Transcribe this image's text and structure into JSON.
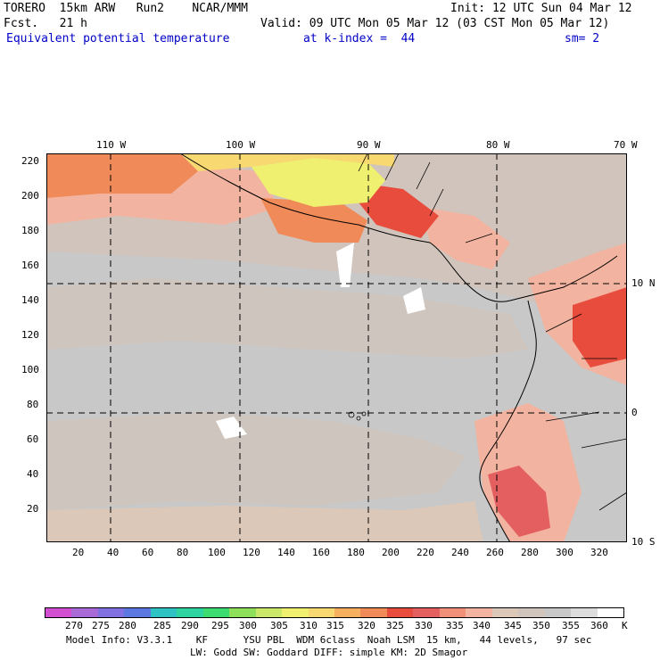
{
  "header": {
    "line1_left": "TORERO  15km ARW   Run2    NCAR/MMM",
    "line1_right": "Init: 12 UTC Sun 04 Mar 12",
    "line2_left": "Fcst.   21 h",
    "line2_right": "Valid: 09 UTC Mon 05 Mar 12 (03 CST Mon 05 Mar 12)",
    "line3_field": "Equivalent potential temperature",
    "line3_level": "at k-index =  44",
    "line3_sm": "sm= 2"
  },
  "map": {
    "lon_labels": [
      "110 W",
      "100 W",
      "90 W",
      "80 W",
      "70 W"
    ],
    "lat_labels": [
      "10 N",
      "0",
      "10 S"
    ],
    "y_ticks": [
      "220",
      "200",
      "180",
      "160",
      "140",
      "120",
      "100",
      "80",
      "60",
      "40",
      "20"
    ],
    "x_ticks": [
      "20",
      "40",
      "60",
      "80",
      "100",
      "120",
      "140",
      "160",
      "180",
      "200",
      "220",
      "240",
      "260",
      "280",
      "300",
      "320"
    ]
  },
  "colorbar": {
    "colors": [
      "#d24fd2",
      "#a86ad6",
      "#8070e0",
      "#5a78e0",
      "#2ec2c2",
      "#2ed4a0",
      "#3cdc70",
      "#8ee05a",
      "#cce86a",
      "#f0f070",
      "#f8d870",
      "#f6b060",
      "#f08a58",
      "#e84c3c",
      "#e46060",
      "#f09078",
      "#f2b4a0",
      "#dcc8b8",
      "#d0c4bc",
      "#c8c8c8",
      "#dcdcdc",
      "#ffffff"
    ],
    "labels": [
      "270",
      "275",
      "280",
      "285",
      "290",
      "295",
      "300",
      "305",
      "310",
      "315",
      "320",
      "325",
      "330",
      "335",
      "340",
      "345",
      "350",
      "355",
      "360",
      "K"
    ]
  },
  "footer": {
    "line1": "Model Info: V3.3.1    KF      YSU PBL  WDM 6class  Noah LSM  15 km,   44 levels,   97 sec",
    "line2": "LW: Godd SW: Goddard DIFF: simple KM: 2D Smagor"
  }
}
